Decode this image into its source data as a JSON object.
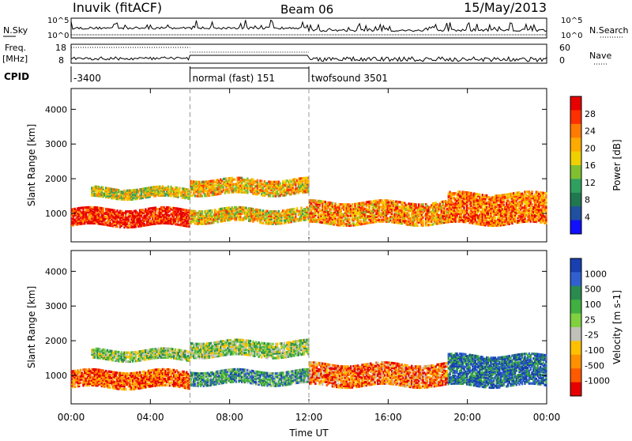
{
  "header": {
    "station": "Inuvik (fitACF)",
    "beam": "Beam 06",
    "date": "15/May/2013"
  },
  "strip_labels": {
    "nsky": "N.Sky",
    "nsearch": "N.Search",
    "freq_line1": "Freq.",
    "freq_line2": "[MHz]",
    "nave": "Nave",
    "cpid": "CPID"
  },
  "noise_ticks_left": [
    "10^5",
    "10^0"
  ],
  "noise_ticks_right": [
    "10^5",
    "10^0"
  ],
  "freq_ticks": [
    "18",
    "8"
  ],
  "nave_ticks": [
    "60",
    "0"
  ],
  "cpid_segments": [
    {
      "label": "-3400",
      "start_hour": 0,
      "end_hour": 6
    },
    {
      "label": "normal (fast) 151",
      "start_hour": 6,
      "end_hour": 12
    },
    {
      "label": "twofsound 3501",
      "start_hour": 12,
      "end_hour": 24
    }
  ],
  "chart_data": [
    {
      "type": "heatmap",
      "quantity": "Power",
      "xlabel": "",
      "ylabel": "Slant Range [km]",
      "xlim_hours": [
        0,
        24
      ],
      "ylim": [
        180,
        4600
      ],
      "y_ticks": [
        1000,
        2000,
        3000,
        4000
      ],
      "colorbar": {
        "label": "Power [dB]",
        "ticks": [
          "28",
          "24",
          "20",
          "16",
          "12",
          "8",
          "4"
        ],
        "colors": [
          "#e60000",
          "#ff3000",
          "#ff7a00",
          "#ffaa00",
          "#f0d000",
          "#80c030",
          "#30a060",
          "#207850",
          "#2050a0",
          "#1010ff"
        ]
      },
      "echo_bands": [
        {
          "start_hour": 0.0,
          "end_hour": 6.0,
          "range_min": 650,
          "range_max": 1150,
          "level": 0.92
        },
        {
          "start_hour": 1.0,
          "end_hour": 6.0,
          "range_min": 1450,
          "range_max": 1750,
          "level": 0.55
        },
        {
          "start_hour": 6.0,
          "end_hour": 12.0,
          "range_min": 1550,
          "range_max": 2000,
          "level": 0.62
        },
        {
          "start_hour": 6.0,
          "end_hour": 12.0,
          "range_min": 750,
          "range_max": 1150,
          "level": 0.6
        },
        {
          "start_hour": 12.0,
          "end_hour": 19.0,
          "range_min": 700,
          "range_max": 1350,
          "level": 0.7
        },
        {
          "start_hour": 19.0,
          "end_hour": 24.0,
          "range_min": 700,
          "range_max": 1600,
          "level": 0.75
        }
      ]
    },
    {
      "type": "heatmap",
      "quantity": "Velocity",
      "xlabel": "Time UT",
      "ylabel": "Slant Range [km]",
      "xlim_hours": [
        0,
        24
      ],
      "ylim": [
        180,
        4600
      ],
      "y_ticks": [
        1000,
        2000,
        3000,
        4000
      ],
      "x_ticks": [
        "00:00",
        "04:00",
        "08:00",
        "12:00",
        "16:00",
        "20:00",
        "00:00"
      ],
      "colorbar": {
        "label": "Velocity [m s-1]",
        "ticks": [
          "1000",
          "500",
          "100",
          "25",
          "-25",
          "-100",
          "-500",
          "-1000"
        ],
        "colors": [
          "#1840b0",
          "#3060d0",
          "#2a8a50",
          "#40b040",
          "#80d040",
          "#c0c0b8",
          "#ffc000",
          "#ff9000",
          "#ff5a00",
          "#e60000"
        ]
      },
      "echo_bands": [
        {
          "start_hour": 0.0,
          "end_hour": 6.0,
          "range_min": 650,
          "range_max": 1150,
          "level": 0.85
        },
        {
          "start_hour": 1.0,
          "end_hour": 6.0,
          "range_min": 1450,
          "range_max": 1750,
          "level": 0.45
        },
        {
          "start_hour": 6.0,
          "end_hour": 12.0,
          "range_min": 1550,
          "range_max": 2000,
          "level": 0.45
        },
        {
          "start_hour": 6.0,
          "end_hour": 12.0,
          "range_min": 750,
          "range_max": 1150,
          "level": 0.3
        },
        {
          "start_hour": 12.0,
          "end_hour": 19.0,
          "range_min": 700,
          "range_max": 1350,
          "level": 0.8
        },
        {
          "start_hour": 19.0,
          "end_hour": 24.0,
          "range_min": 700,
          "range_max": 1600,
          "level": 0.15
        }
      ]
    }
  ]
}
